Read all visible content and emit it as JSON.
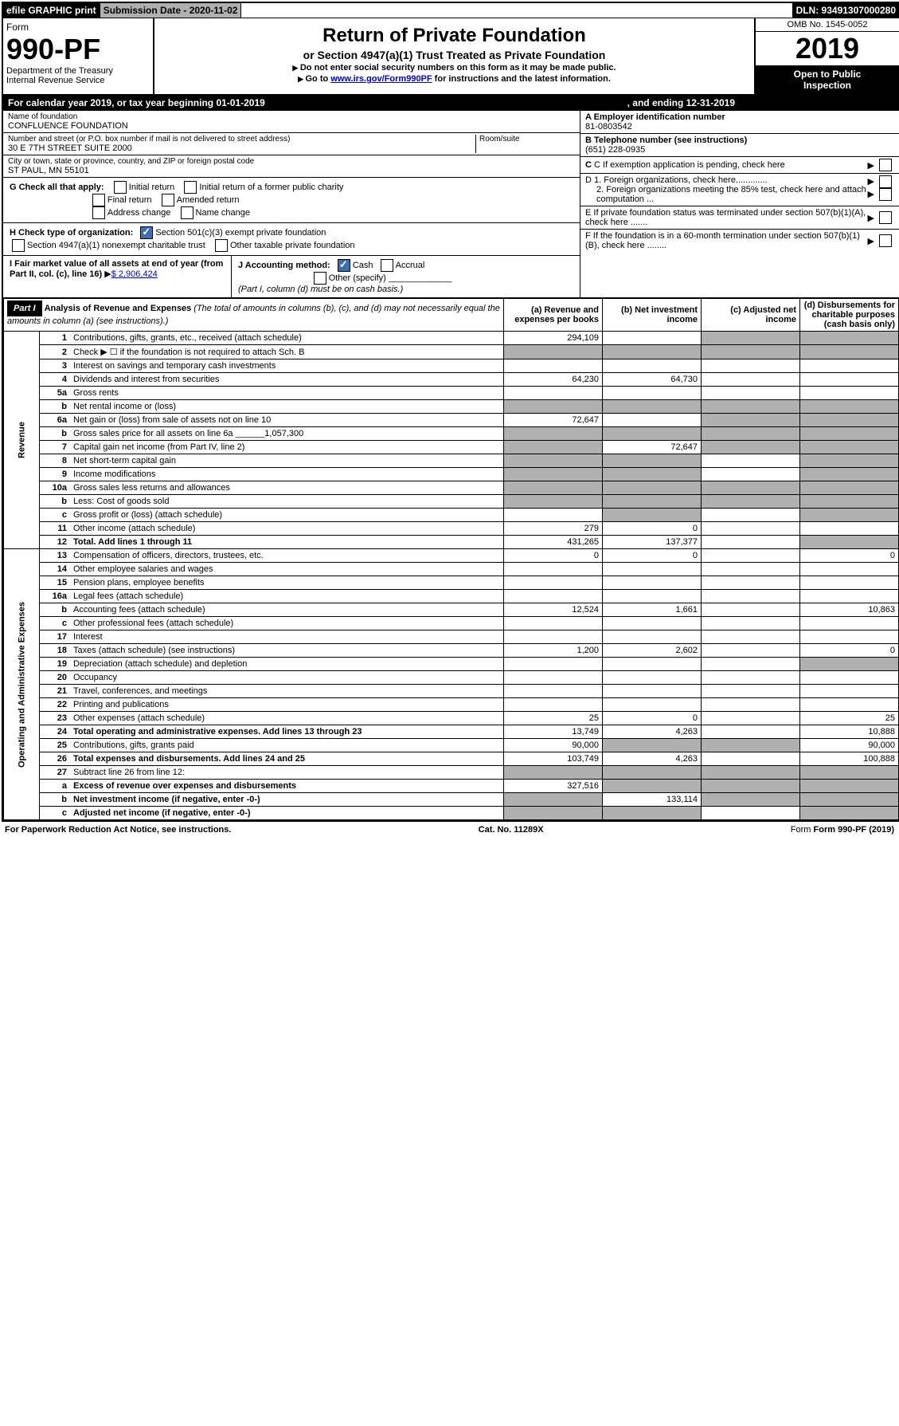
{
  "hdr": {
    "efile": "efile GRAPHIC print",
    "sub_lbl": "Submission Date - 2020-11-02",
    "dln": "DLN: 93491307000280"
  },
  "form": {
    "form_word": "Form",
    "num": "990-PF",
    "dept": "Department of the Treasury",
    "irs": "Internal Revenue Service",
    "omb": "OMB No. 1545-0052",
    "year": "2019",
    "open": "Open to Public",
    "insp": "Inspection"
  },
  "title": {
    "h1": "Return of Private Foundation",
    "h2": "or Section 4947(a)(1) Trust Treated as Private Foundation",
    "p1": "Do not enter social security numbers on this form as it may be made public.",
    "p2_a": "Go to ",
    "p2_link": "www.irs.gov/Form990PF",
    "p2_b": " for instructions and the latest information."
  },
  "cal": {
    "a": "For calendar year 2019, or tax year beginning 01-01-2019",
    "b": ", and ending 12-31-2019"
  },
  "info": {
    "name_lbl": "Name of foundation",
    "name": "CONFLUENCE FOUNDATION",
    "addr_lbl": "Number and street (or P.O. box number if mail is not delivered to street address)",
    "addr": "30 E 7TH STREET SUITE 2000",
    "room_lbl": "Room/suite",
    "city_lbl": "City or town, state or province, country, and ZIP or foreign postal code",
    "city": "ST PAUL, MN  55101",
    "ein_lbl": "A Employer identification number",
    "ein": "81-0803542",
    "tel_lbl": "B Telephone number (see instructions)",
    "tel": "(651) 228-0935",
    "c": "C If exemption application is pending, check here",
    "d1": "D 1. Foreign organizations, check here.............",
    "d2": "2. Foreign organizations meeting the 85% test, check here and attach computation ...",
    "e": "E  If private foundation status was terminated under section 507(b)(1)(A), check here .......",
    "f": "F  If the foundation is in a 60-month termination under section 507(b)(1)(B), check here ........"
  },
  "g": {
    "lbl": "G Check all that apply:",
    "o1": "Initial return",
    "o2": "Initial return of a former public charity",
    "o3": "Final return",
    "o4": "Amended return",
    "o5": "Address change",
    "o6": "Name change"
  },
  "h": {
    "lbl": "H Check type of organization:",
    "o1": "Section 501(c)(3) exempt private foundation",
    "o2": "Section 4947(a)(1) nonexempt charitable trust",
    "o3": "Other taxable private foundation"
  },
  "i": {
    "lbl": "I Fair market value of all assets at end of year (from Part II, col. (c), line 16)",
    "arrow": "▶",
    "val": "$  2,906,424"
  },
  "j": {
    "lbl": "J Accounting method:",
    "o1": "Cash",
    "o2": "Accrual",
    "o3": "Other (specify)",
    "note": "(Part I, column (d) must be on cash basis.)"
  },
  "part1": {
    "hdr": "Part I",
    "title": "Analysis of Revenue and Expenses",
    "sub": "(The total of amounts in columns (b), (c), and (d) may not necessarily equal the amounts in column (a) (see instructions).)",
    "cols": {
      "a": "(a)   Revenue and expenses per books",
      "b": "(b)  Net investment income",
      "c": "(c)  Adjusted net income",
      "d": "(d)  Disbursements for charitable purposes (cash basis only)"
    },
    "rev_lbl": "Revenue",
    "exp_lbl": "Operating and Administrative Expenses"
  },
  "rows": [
    {
      "n": "1",
      "d": "Contributions, gifts, grants, etc., received (attach schedule)",
      "a": "294,109",
      "grey_cd": true
    },
    {
      "n": "2",
      "d": "Check ▶ ☐ if the foundation is not required to attach Sch. B",
      "grey_all": true
    },
    {
      "n": "3",
      "d": "Interest on savings and temporary cash investments"
    },
    {
      "n": "4",
      "d": "Dividends and interest from securities",
      "a": "64,230",
      "b": "64,730"
    },
    {
      "n": "5a",
      "d": "Gross rents"
    },
    {
      "n": "b",
      "d": "Net rental income or (loss)",
      "grey_all": true
    },
    {
      "n": "6a",
      "d": "Net gain or (loss) from sale of assets not on line 10",
      "a": "72,647",
      "grey_cd": true
    },
    {
      "n": "b",
      "d": "Gross sales price for all assets on line 6a ______1,057,300",
      "grey_all": true
    },
    {
      "n": "7",
      "d": "Capital gain net income (from Part IV, line 2)",
      "grey_a": true,
      "b": "72,647",
      "grey_cd": true
    },
    {
      "n": "8",
      "d": "Net short-term capital gain",
      "grey_ab": true,
      "grey_d": true
    },
    {
      "n": "9",
      "d": "Income modifications",
      "grey_ab": true,
      "grey_d": true
    },
    {
      "n": "10a",
      "d": "Gross sales less returns and allowances",
      "grey_all": true
    },
    {
      "n": "b",
      "d": "Less: Cost of goods sold",
      "grey_all": true
    },
    {
      "n": "c",
      "d": "Gross profit or (loss) (attach schedule)",
      "grey_b": true,
      "grey_d": true
    },
    {
      "n": "11",
      "d": "Other income (attach schedule)",
      "a": "279",
      "b": "0"
    },
    {
      "n": "12",
      "d": "Total. Add lines 1 through 11",
      "a": "431,265",
      "b": "137,377",
      "grey_d": true,
      "bold": true
    }
  ],
  "exp_rows": [
    {
      "n": "13",
      "d": "Compensation of officers, directors, trustees, etc.",
      "a": "0",
      "b": "0",
      "dv": "0"
    },
    {
      "n": "14",
      "d": "Other employee salaries and wages"
    },
    {
      "n": "15",
      "d": "Pension plans, employee benefits"
    },
    {
      "n": "16a",
      "d": "Legal fees (attach schedule)"
    },
    {
      "n": "b",
      "d": "Accounting fees (attach schedule)",
      "a": "12,524",
      "b": "1,661",
      "dv": "10,863"
    },
    {
      "n": "c",
      "d": "Other professional fees (attach schedule)"
    },
    {
      "n": "17",
      "d": "Interest"
    },
    {
      "n": "18",
      "d": "Taxes (attach schedule) (see instructions)",
      "a": "1,200",
      "b": "2,602",
      "dv": "0"
    },
    {
      "n": "19",
      "d": "Depreciation (attach schedule) and depletion",
      "grey_d": true
    },
    {
      "n": "20",
      "d": "Occupancy"
    },
    {
      "n": "21",
      "d": "Travel, conferences, and meetings"
    },
    {
      "n": "22",
      "d": "Printing and publications"
    },
    {
      "n": "23",
      "d": "Other expenses (attach schedule)",
      "a": "25",
      "b": "0",
      "dv": "25"
    },
    {
      "n": "24",
      "d": "Total operating and administrative expenses. Add lines 13 through 23",
      "a": "13,749",
      "b": "4,263",
      "dv": "10,888",
      "bold": true
    },
    {
      "n": "25",
      "d": "Contributions, gifts, grants paid",
      "a": "90,000",
      "grey_bc": true,
      "dv": "90,000"
    },
    {
      "n": "26",
      "d": "Total expenses and disbursements. Add lines 24 and 25",
      "a": "103,749",
      "b": "4,263",
      "dv": "100,888",
      "bold": true
    },
    {
      "n": "27",
      "d": "Subtract line 26 from line 12:",
      "grey_all": true
    },
    {
      "n": "a",
      "d": "Excess of revenue over expenses and disbursements",
      "a": "327,516",
      "grey_bcd": true,
      "bold": true
    },
    {
      "n": "b",
      "d": "Net investment income (if negative, enter -0-)",
      "grey_a": true,
      "b": "133,114",
      "grey_cd": true,
      "bold": true
    },
    {
      "n": "c",
      "d": "Adjusted net income (if negative, enter -0-)",
      "grey_ab": true,
      "grey_d": true,
      "bold": true
    }
  ],
  "footer": {
    "a": "For Paperwork Reduction Act Notice, see instructions.",
    "b": "Cat. No. 11289X",
    "c": "Form 990-PF (2019)"
  }
}
